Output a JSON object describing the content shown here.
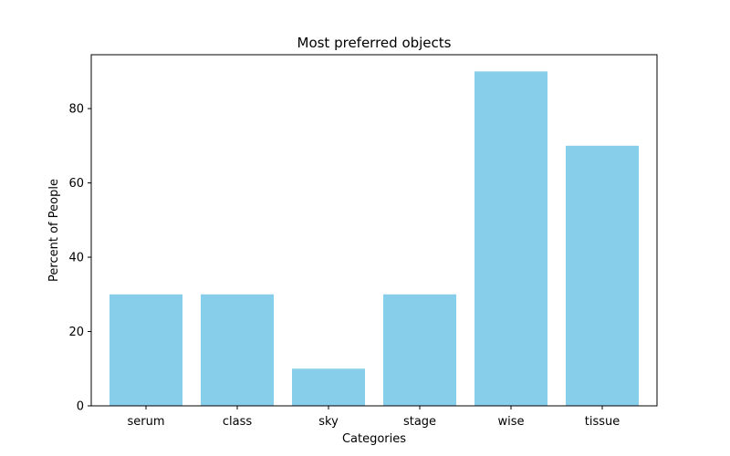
{
  "chart_data": {
    "type": "bar",
    "title": "Most preferred objects",
    "xlabel": "Categories",
    "ylabel": "Percent of People",
    "categories": [
      "serum",
      "class",
      "sky",
      "stage",
      "wise",
      "tissue"
    ],
    "values": [
      30,
      30,
      10,
      30,
      90,
      70
    ],
    "ylim": [
      0,
      94.5
    ],
    "yticks": [
      0,
      20,
      40,
      60,
      80
    ],
    "grid": false,
    "bar_color": "#87ceeb"
  }
}
